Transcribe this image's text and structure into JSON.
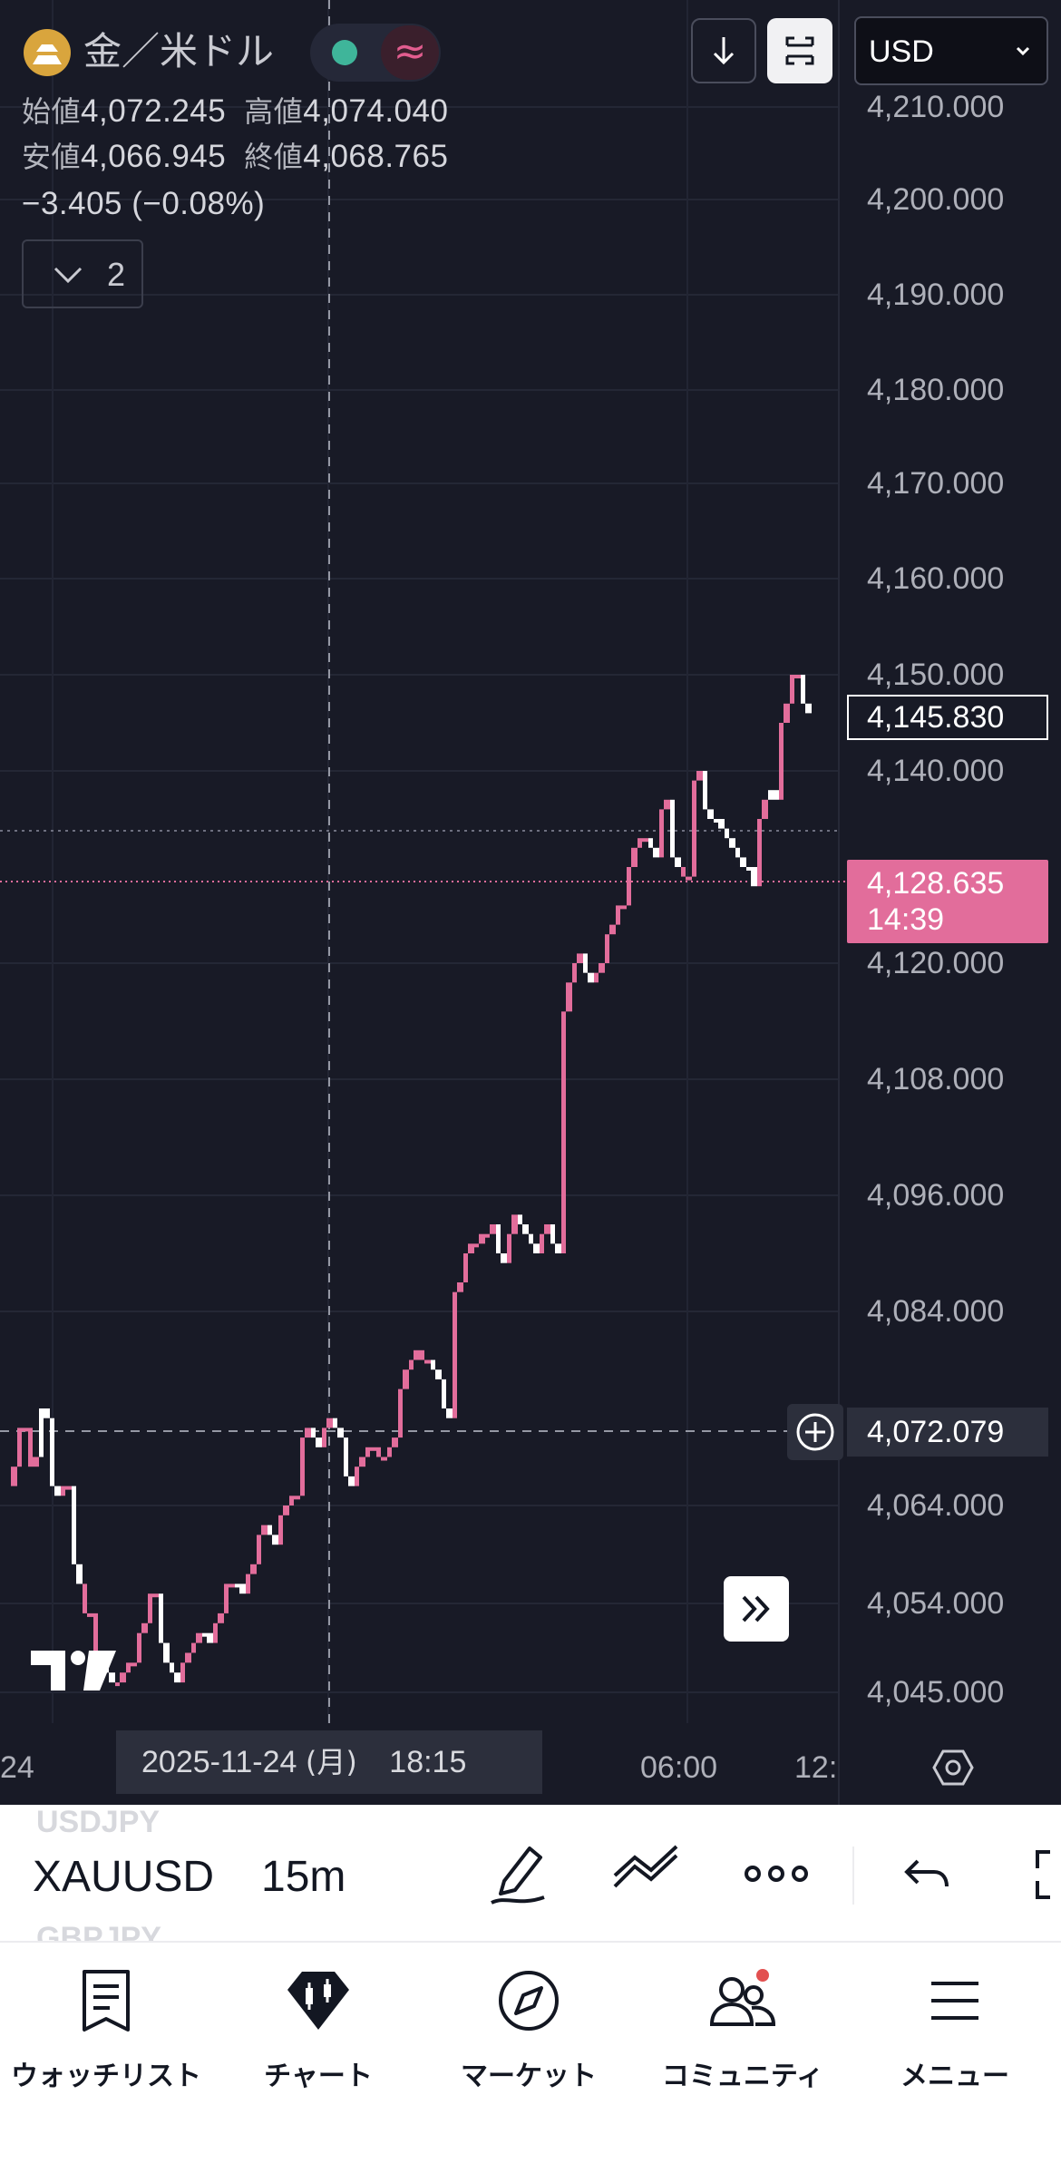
{
  "symbol": {
    "name": "金／米ドル",
    "logo_icon": "gold-bars-icon",
    "status_dot_color": "#3fb59a",
    "wave_icon": "approx-wave-icon"
  },
  "header_buttons": {
    "download_icon": "arrow-down-icon",
    "fullscreen_icon": "fullscreen-frame-icon",
    "currency": "USD"
  },
  "ohlc": {
    "open_label": "始値",
    "open": "4,072.245",
    "high_label": "高値",
    "high": "4,074.040",
    "low_label": "安値",
    "low": "4,066.945",
    "close_label": "終値",
    "close": "4,068.765",
    "change": "−3.405 (−0.08%)"
  },
  "indicators_toggle": {
    "count": "2"
  },
  "price_scale": {
    "labels": [
      {
        "text": "4,210.000",
        "v": 4210
      },
      {
        "text": "4,200.000",
        "v": 4200
      },
      {
        "text": "4,190.000",
        "v": 4190
      },
      {
        "text": "4,180.000",
        "v": 4180
      },
      {
        "text": "4,170.000",
        "v": 4170
      },
      {
        "text": "4,160.000",
        "v": 4160
      },
      {
        "text": "4,150.000",
        "v": 4150
      },
      {
        "text": "4,140.000",
        "v": 4140
      },
      {
        "text": "4,120.000",
        "v": 4120
      },
      {
        "text": "4,108.000",
        "v": 4108
      },
      {
        "text": "4,096.000",
        "v": 4096
      },
      {
        "text": "4,084.000",
        "v": 4084
      },
      {
        "text": "4,064.000",
        "v": 4064
      },
      {
        "text": "4,054.000",
        "v": 4054
      },
      {
        "text": "4,045.000",
        "v": 4045
      }
    ],
    "current_price": "4,145.830",
    "last_price": "4,128.635",
    "countdown": "14:39",
    "crosshair_price": "4,072.079",
    "up_color": "#e26d9b",
    "down_color": "#ffffff"
  },
  "time_scale": {
    "left_label": "24",
    "crosshair_time": "2025-11-24",
    "crosshair_dow": "(月)",
    "crosshair_clock": "18:15",
    "label_1": "06:00",
    "label_2": "12:"
  },
  "chart_data": {
    "type": "line",
    "series": [
      {
        "values": [
          4068,
          4072,
          4069,
          4073,
          4065,
          4066,
          4056,
          4053,
          4049,
          4046,
          4047,
          4048,
          4052,
          4055,
          4048,
          4046,
          4049,
          4051,
          4050,
          4053,
          4056,
          4055,
          4058,
          4062,
          4060,
          4064,
          4065,
          4072,
          4070,
          4073,
          4071,
          4066,
          4069,
          4070,
          4069,
          4071,
          4078,
          4080,
          4079,
          4077,
          4073,
          4087,
          4091,
          4092,
          4093,
          4089,
          4094,
          4092,
          4090,
          4093,
          4090,
          4118,
          4121,
          4118,
          4120,
          4124,
          4126,
          4132,
          4133,
          4131,
          4137,
          4130,
          4129,
          4140,
          4135,
          4134,
          4132,
          4130,
          4128,
          4137,
          4137,
          4147,
          4150,
          4146
        ],
        "open": [
          4066,
          4072,
          4068,
          4074,
          4066,
          4066,
          4058,
          4053,
          4049,
          4047,
          4046,
          4048,
          4051,
          4055,
          4050,
          4047,
          4048,
          4050,
          4051,
          4052,
          4056,
          4056,
          4057,
          4061,
          4061,
          4063,
          4065,
          4071,
          4071,
          4072,
          4072,
          4067,
          4068,
          4070,
          4069,
          4070,
          4076,
          4079,
          4079,
          4078,
          4074,
          4086,
          4090,
          4091,
          4092,
          4090,
          4092,
          4093,
          4091,
          4092,
          4091,
          4115,
          4120,
          4119,
          4119,
          4123,
          4126,
          4130,
          4133,
          4132,
          4136,
          4131,
          4129,
          4139,
          4136,
          4135,
          4133,
          4131,
          4130,
          4135,
          4138,
          4145,
          4150,
          4147
        ]
      }
    ],
    "ylim": [
      4040,
      4215
    ]
  },
  "goto_realtime_icon": "double-chevron-right-icon",
  "tradingview_logo": "TV",
  "settings_icon": "hexagon-settings-icon",
  "toolbar": {
    "ghost_symbol_above": "USDJPY",
    "symbol": "XAUUSD",
    "ghost_symbol_below": "GBPJPY",
    "interval": "15m",
    "draw_icon": "pen-icon",
    "trend_icon": "trendline-icon",
    "more_icon": "more-dots-icon",
    "undo_icon": "undo-icon",
    "fullscreen_icon": "expand-corner-icon"
  },
  "bottom_nav": {
    "items": [
      {
        "label": "ウォッチリスト",
        "icon": "watchlist-icon"
      },
      {
        "label": "チャート",
        "icon": "chart-icon"
      },
      {
        "label": "マーケット",
        "icon": "compass-icon"
      },
      {
        "label": "コミュニティ",
        "icon": "community-icon"
      },
      {
        "label": "メニュー",
        "icon": "menu-icon"
      }
    ],
    "notification_color": "#e25050"
  }
}
